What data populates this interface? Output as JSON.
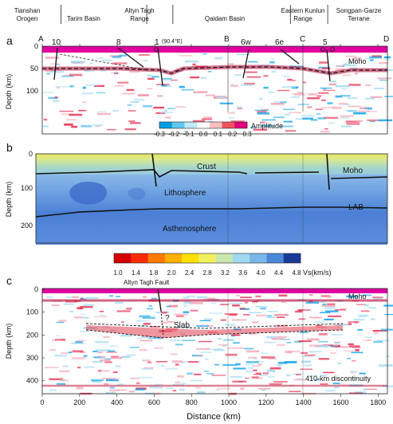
{
  "regions": [
    {
      "label_lines": [
        "Tianshan",
        "Orogen"
      ]
    },
    {
      "label_lines": [
        "Tarim Basin"
      ]
    },
    {
      "label_lines": [
        "Altyn Tagh",
        "Range"
      ]
    },
    {
      "label_lines": [
        "Qaidam Basin"
      ]
    },
    {
      "label_lines": [
        "Eastern Kunlun",
        "Range"
      ]
    },
    {
      "label_lines": [
        "Songpan-Garze",
        "Terrane"
      ]
    }
  ],
  "section_points": [
    "A",
    "B",
    "C",
    "D"
  ],
  "fault_numbers": [
    "10",
    "8",
    "1",
    "6w",
    "6e",
    "5"
  ],
  "longitude_note": "(90.4°E)",
  "panels": {
    "a": {
      "letter": "a",
      "ylabel": "Depth (km)",
      "yticks": [
        "0",
        "50",
        "100"
      ],
      "moho_label": "Moho",
      "colorbar": {
        "title": "Amplitude",
        "ticks": [
          "-0.3",
          "-0.2",
          "-0.1",
          "0.0",
          "0.1",
          "0.2",
          "0.3"
        ],
        "colors": [
          "#00a0e0",
          "#5fc8f0",
          "#c0e8f8",
          "#ffffff",
          "#f8c0c0",
          "#ef5060",
          "#e0007f"
        ]
      }
    },
    "b": {
      "letter": "b",
      "ylabel": "Depth (km)",
      "yticks": [
        "0",
        "100",
        "200"
      ],
      "labels": {
        "crust": "Crust",
        "lithosphere": "Lithosphere",
        "asthenosphere": "Asthenosphere",
        "moho": "Moho",
        "lab": "LAB"
      },
      "colorbar": {
        "title": "Vs(km/s)",
        "ticks": [
          "1.0",
          "1.4",
          "1.8",
          "2.0",
          "2.4",
          "2.8",
          "3.2",
          "3.6",
          "4.0",
          "4.4",
          "4.8"
        ],
        "colors": [
          "#d40000",
          "#ff2a00",
          "#ff7a00",
          "#ffb000",
          "#ffe000",
          "#f0f060",
          "#c8e8b0",
          "#a0d8f0",
          "#78b8e8",
          "#4a88d8",
          "#1a3a9a"
        ]
      }
    },
    "c": {
      "letter": "c",
      "ylabel": "Depth (km)",
      "yticks": [
        "0",
        "100",
        "200",
        "300",
        "400"
      ],
      "xlabel": "Distance (km)",
      "xticks": [
        "0",
        "200",
        "400",
        "600",
        "800",
        "1000",
        "1200",
        "1400",
        "1600",
        "1800"
      ],
      "labels": {
        "fault": "Altyn Tagh Fault",
        "question": "?",
        "slab": "Slab",
        "moho": "Moho",
        "d410": "410-km discontinuity"
      }
    }
  },
  "chart_data": {
    "type": "heatmap",
    "xlabel": "Distance (km)",
    "xlim": [
      0,
      1850
    ],
    "section_point_distances": {
      "A": 0,
      "B": 1000,
      "C": 1380,
      "D": 1850
    },
    "fault_distances": {
      "10": 110,
      "8": 440,
      "1": 655,
      "6w": 1080,
      "6e": 1270,
      "5": 1490
    },
    "region_boundaries": [
      100,
      560,
      700,
      1330,
      1530
    ],
    "panel_a": {
      "ylim": [
        0,
        150
      ],
      "moho_depth": [
        [
          0,
          58
        ],
        [
          100,
          57
        ],
        [
          300,
          57
        ],
        [
          500,
          59
        ],
        [
          655,
          64
        ],
        [
          800,
          57
        ],
        [
          1000,
          55
        ],
        [
          1200,
          56
        ],
        [
          1380,
          58
        ],
        [
          1490,
          62
        ],
        [
          1850,
          60
        ]
      ]
    },
    "panel_b": {
      "ylim": [
        0,
        250
      ],
      "moho_depth": [
        [
          0,
          65
        ],
        [
          200,
          62
        ],
        [
          650,
          58
        ],
        [
          1000,
          62
        ],
        [
          1380,
          62
        ],
        [
          1850,
          60
        ]
      ],
      "lab_depth": [
        [
          0,
          195
        ],
        [
          400,
          178
        ],
        [
          700,
          172
        ],
        [
          1000,
          172
        ],
        [
          1380,
          168
        ],
        [
          1850,
          170
        ]
      ]
    },
    "panel_c": {
      "ylim": [
        0,
        450
      ],
      "moho_depth": 55,
      "d410_depth": 410,
      "slab_range_km": [
        240,
        1400
      ],
      "slab_depth": [
        160,
        200
      ]
    }
  }
}
